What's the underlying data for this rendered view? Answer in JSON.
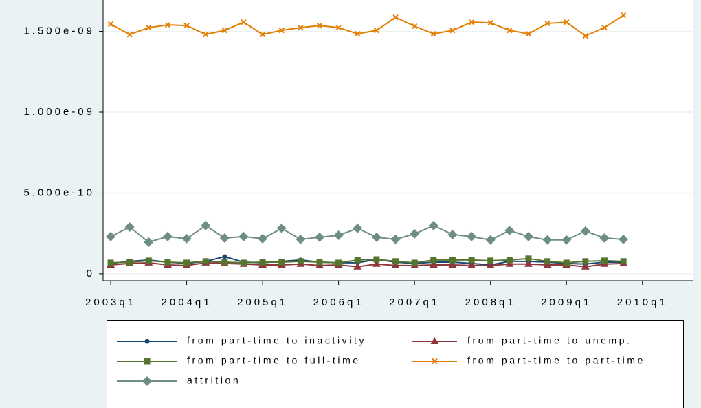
{
  "chart_data": {
    "type": "line",
    "x": [
      172,
      173,
      174,
      175,
      176,
      177,
      178,
      179,
      180,
      181,
      182,
      183,
      184,
      185,
      186,
      187,
      188,
      189,
      190,
      191,
      192,
      193,
      194,
      195,
      196,
      197,
      198,
      199
    ],
    "xlim": [
      171.6,
      202.65
    ],
    "xticks": [
      {
        "value": 172,
        "label": "2003q1"
      },
      {
        "value": 176,
        "label": "2004q1"
      },
      {
        "value": 180,
        "label": "2005q1"
      },
      {
        "value": 184,
        "label": "2006q1"
      },
      {
        "value": 188,
        "label": "2007q1"
      },
      {
        "value": 192,
        "label": "2008q1"
      },
      {
        "value": 196,
        "label": "2009q1"
      },
      {
        "value": 200,
        "label": "2010q1"
      }
    ],
    "ylim": [
      -4.3e-11,
      1.694e-09
    ],
    "yticks": [
      0,
      {
        "value": 5e-10,
        "label": "5.000e-10"
      },
      {
        "value": 1e-09,
        "label": "1.000e-09"
      },
      {
        "value": 1.5e-09,
        "label": "1.500e-09"
      }
    ],
    "grid": true,
    "legend_position": "bottom",
    "series": [
      {
        "name": "from part-time to inactivity",
        "color": "#1a476f",
        "marker": "circle",
        "values": [
          6.4e-11,
          7.7e-11,
          8.5e-11,
          7.2e-11,
          6.4e-11,
          7.7e-11,
          1.06e-10,
          7.2e-11,
          6.8e-11,
          7.7e-11,
          8.5e-11,
          7.2e-11,
          6.8e-11,
          6.8e-11,
          8.9e-11,
          7.2e-11,
          6.4e-11,
          7.2e-11,
          7.2e-11,
          6.4e-11,
          5.5e-11,
          7.7e-11,
          7.7e-11,
          7.2e-11,
          6.4e-11,
          6e-11,
          7.2e-11,
          7.2e-11
        ]
      },
      {
        "name": "from part-time to unemp.",
        "color": "#90353b",
        "marker": "triangle",
        "values": [
          5.5e-11,
          6.4e-11,
          6.8e-11,
          5.5e-11,
          5.1e-11,
          6.8e-11,
          6.4e-11,
          6e-11,
          5.5e-11,
          5.5e-11,
          6e-11,
          5.1e-11,
          5.5e-11,
          4.3e-11,
          6e-11,
          5.1e-11,
          5.1e-11,
          5.5e-11,
          5.5e-11,
          5.1e-11,
          5.1e-11,
          6e-11,
          6e-11,
          5.5e-11,
          5.5e-11,
          4.3e-11,
          6e-11,
          6.4e-11
        ]
      },
      {
        "name": "from part-time to full-time",
        "color": "#55752f",
        "marker": "square",
        "values": [
          6.8e-11,
          7.2e-11,
          8.1e-11,
          7.2e-11,
          6.8e-11,
          7.7e-11,
          7.2e-11,
          6.8e-11,
          7.2e-11,
          7.2e-11,
          7.7e-11,
          7.2e-11,
          6.8e-11,
          8.5e-11,
          8.9e-11,
          7.7e-11,
          6.8e-11,
          8.5e-11,
          8.5e-11,
          8.5e-11,
          8.1e-11,
          8.5e-11,
          9.4e-11,
          7.7e-11,
          6.8e-11,
          7.7e-11,
          8.1e-11,
          7.7e-11
        ]
      },
      {
        "name": "from part-time to part-time",
        "color": "#e37e00",
        "marker": "x",
        "values": [
          1.545e-09,
          1.481e-09,
          1.523e-09,
          1.54e-09,
          1.536e-09,
          1.481e-09,
          1.506e-09,
          1.557e-09,
          1.481e-09,
          1.506e-09,
          1.523e-09,
          1.536e-09,
          1.523e-09,
          1.485e-09,
          1.506e-09,
          1.587e-09,
          1.532e-09,
          1.485e-09,
          1.506e-09,
          1.557e-09,
          1.553e-09,
          1.506e-09,
          1.485e-09,
          1.549e-09,
          1.557e-09,
          1.472e-09,
          1.523e-09,
          1.6e-09
        ]
      },
      {
        "name": "attrition",
        "color": "#6e8e84",
        "marker": "diamond",
        "values": [
          2.3e-10,
          2.89e-10,
          1.96e-10,
          2.3e-10,
          2.17e-10,
          2.98e-10,
          2.21e-10,
          2.3e-10,
          2.17e-10,
          2.81e-10,
          2.13e-10,
          2.26e-10,
          2.38e-10,
          2.81e-10,
          2.26e-10,
          2.13e-10,
          2.47e-10,
          2.98e-10,
          2.43e-10,
          2.3e-10,
          2.09e-10,
          2.68e-10,
          2.3e-10,
          2.09e-10,
          2.09e-10,
          2.64e-10,
          2.21e-10,
          2.13e-10
        ]
      }
    ]
  }
}
